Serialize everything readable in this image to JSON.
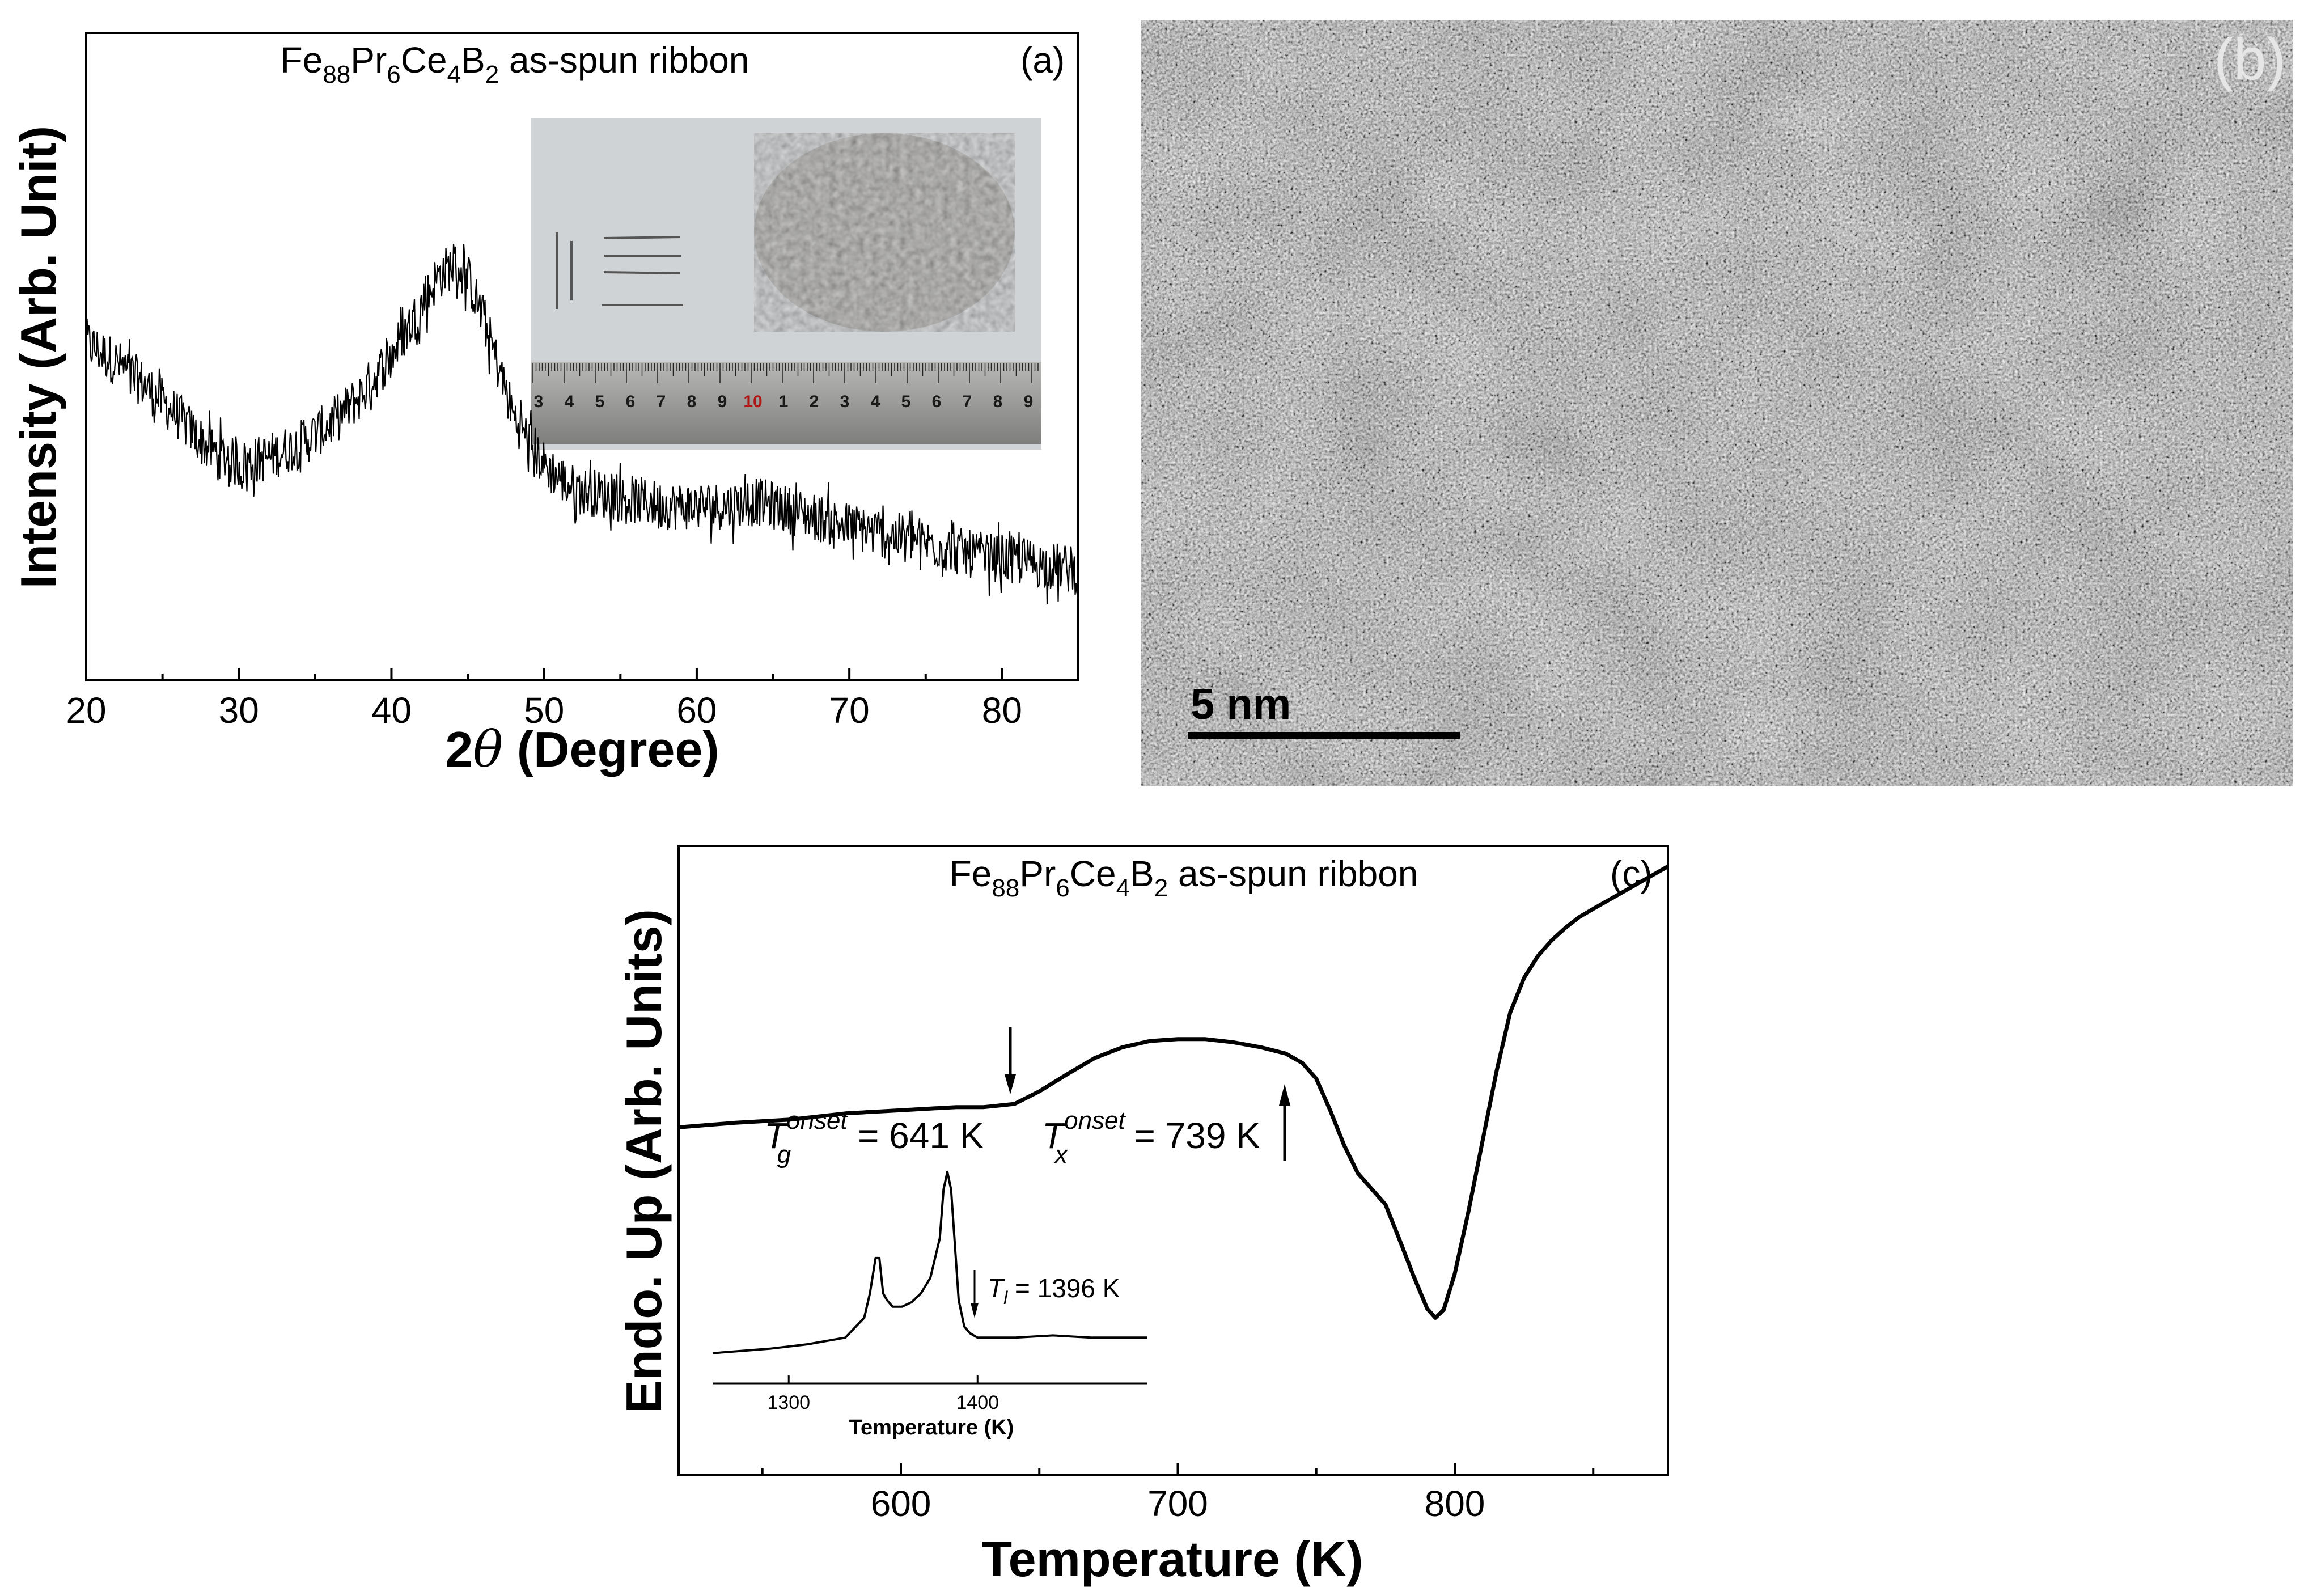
{
  "panels": {
    "a": {
      "tag": "(a)",
      "title_prefix": "Fe",
      "title_sub1": "88",
      "title_el2": "Pr",
      "title_sub2": "6",
      "title_el3": "Ce",
      "title_sub3": "4",
      "title_el4": "B",
      "title_sub4": "2",
      "title_suffix": " as-spun ribbon",
      "xlabel_prefix": "2",
      "xlabel_theta": "θ",
      "xlabel_suffix": " (Degree)",
      "ylabel": "Intensity (Arb. Unit)",
      "inset_ruler_numbers": [
        "3",
        "4",
        "5",
        "6",
        "7",
        "8",
        "9",
        "10",
        "1",
        "2",
        "3",
        "4",
        "5",
        "6",
        "7",
        "8",
        "9"
      ],
      "inset_ruler_highlight": "10"
    },
    "b": {
      "tag": "(b)",
      "scalebar_label": "5 nm"
    },
    "c": {
      "tag": "(c)",
      "title_prefix": "Fe",
      "title_sub1": "88",
      "title_el2": "Pr",
      "title_sub2": "6",
      "title_el3": "Ce",
      "title_sub3": "4",
      "title_el4": "B",
      "title_sub4": "2",
      "title_suffix": " as-spun ribbon",
      "xlabel": "Temperature (K)",
      "ylabel": "Endo. Up (Arb. Units)",
      "tg_T": "T",
      "tg_sub": "g",
      "tg_sup": "onset",
      "tg_value": " = 641 K",
      "tx_T": "T",
      "tx_sub": "x",
      "tx_sup": "onset",
      "tx_value": " = 739 K",
      "inset_xlabel": "Temperature (K)",
      "tl_T": "T",
      "tl_sub": "l",
      "tl_value": " = 1396 K"
    }
  },
  "chart_data": [
    {
      "id": "a",
      "type": "line",
      "title": "Fe88Pr6Ce4B2 as-spun ribbon",
      "xlabel": "2θ (Degree)",
      "ylabel": "Intensity (Arb. Unit)",
      "xlim": [
        20,
        85
      ],
      "ylim": [
        0,
        1
      ],
      "x_ticks": [
        20,
        30,
        40,
        50,
        60,
        70,
        80
      ],
      "x_tick_labels": [
        "20",
        "30",
        "40",
        "50",
        "60",
        "70",
        "80"
      ],
      "y_ticks_shown": false,
      "grid": false,
      "noise_amplitude": 0.06,
      "series": [
        {
          "x": [
            20,
            22,
            24,
            26,
            28,
            30,
            32,
            34,
            36,
            38,
            40,
            42,
            43,
            44,
            45,
            46,
            47,
            48,
            50,
            52,
            55,
            58,
            60,
            62,
            64,
            66,
            68,
            70,
            72,
            74,
            76,
            78,
            80,
            82,
            85
          ],
          "values": [
            0.8,
            0.75,
            0.69,
            0.62,
            0.54,
            0.5,
            0.52,
            0.55,
            0.6,
            0.67,
            0.77,
            0.89,
            0.96,
            0.99,
            0.96,
            0.86,
            0.74,
            0.62,
            0.5,
            0.44,
            0.42,
            0.4,
            0.4,
            0.4,
            0.41,
            0.39,
            0.37,
            0.35,
            0.33,
            0.32,
            0.3,
            0.28,
            0.27,
            0.26,
            0.24
          ]
        }
      ]
    },
    {
      "id": "c",
      "type": "line",
      "title": "Fe88Pr6Ce4B2 as-spun ribbon",
      "xlabel": "Temperature (K)",
      "ylabel": "Endo. Up (Arb. Units)",
      "xlim": [
        520,
        880
      ],
      "ylim": [
        0,
        1
      ],
      "x_ticks": [
        600,
        700,
        800
      ],
      "x_tick_labels": [
        "600",
        "700",
        "800"
      ],
      "y_ticks_shown": false,
      "grid": false,
      "annotations": [
        "Tg onset = 641 K",
        "Tx onset = 739 K"
      ],
      "series": [
        {
          "x": [
            520,
            540,
            560,
            580,
            600,
            620,
            630,
            641,
            650,
            660,
            670,
            680,
            690,
            700,
            710,
            720,
            730,
            739,
            745,
            750,
            755,
            760,
            765,
            770,
            775,
            780,
            785,
            790,
            793,
            796,
            800,
            805,
            810,
            815,
            820,
            825,
            830,
            835,
            840,
            845,
            850,
            860,
            870,
            880
          ],
          "values": [
            0.553,
            0.56,
            0.565,
            0.575,
            0.58,
            0.585,
            0.585,
            0.59,
            0.61,
            0.637,
            0.663,
            0.68,
            0.69,
            0.693,
            0.693,
            0.688,
            0.68,
            0.67,
            0.655,
            0.63,
            0.58,
            0.525,
            0.48,
            0.455,
            0.43,
            0.375,
            0.318,
            0.265,
            0.25,
            0.263,
            0.32,
            0.42,
            0.53,
            0.64,
            0.735,
            0.79,
            0.825,
            0.85,
            0.87,
            0.887,
            0.9,
            0.925,
            0.95,
            0.975
          ]
        }
      ]
    },
    {
      "id": "c-inset",
      "type": "line",
      "xlabel": "Temperature (K)",
      "xlim": [
        1260,
        1490
      ],
      "ylim": [
        0,
        1
      ],
      "x_ticks": [
        1300,
        1400
      ],
      "x_tick_labels": [
        "1300",
        "1400"
      ],
      "annotations": [
        "Tl = 1396 K"
      ],
      "series": [
        {
          "x": [
            1260,
            1290,
            1310,
            1330,
            1340,
            1343,
            1346,
            1348,
            1350,
            1352,
            1355,
            1360,
            1365,
            1370,
            1375,
            1380,
            1382,
            1384,
            1386,
            1388,
            1390,
            1393,
            1396,
            1400,
            1420,
            1440,
            1460,
            1490
          ],
          "values": [
            0.06,
            0.08,
            0.1,
            0.13,
            0.22,
            0.33,
            0.49,
            0.49,
            0.33,
            0.3,
            0.27,
            0.27,
            0.29,
            0.33,
            0.4,
            0.58,
            0.8,
            0.88,
            0.8,
            0.55,
            0.3,
            0.18,
            0.15,
            0.13,
            0.13,
            0.14,
            0.13,
            0.13
          ]
        }
      ]
    }
  ]
}
